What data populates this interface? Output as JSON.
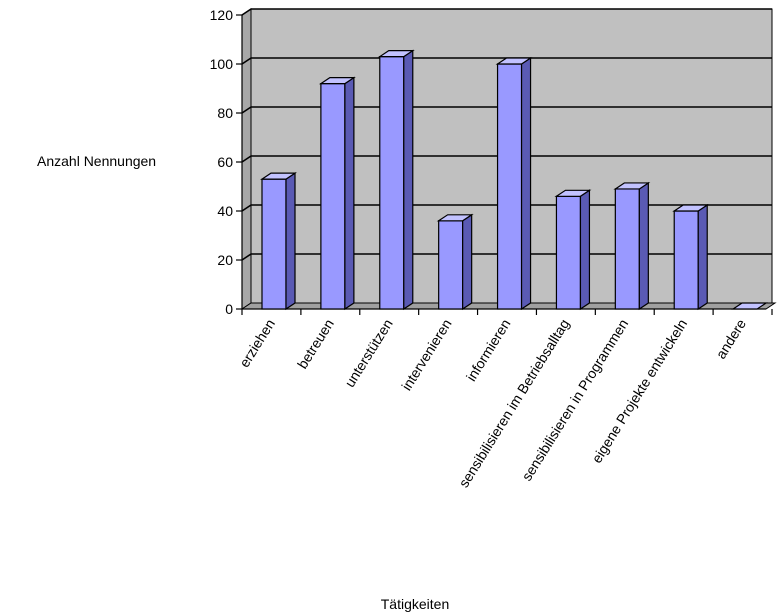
{
  "chart_data": {
    "type": "bar",
    "style": "3d-column",
    "categories": [
      "erziehen",
      "betreuen",
      "unterstützen",
      "intervenieren",
      "informieren",
      "sensibilisieren im Betriebsalltag",
      "sensibilisieren in Programmen",
      "eigene Projekte entwickeln",
      "andere"
    ],
    "values": [
      53,
      92,
      103,
      36,
      100,
      46,
      49,
      40,
      0
    ],
    "xlabel": "Tätigkeiten",
    "ylabel": "Anzahl Nennungen",
    "ylim": [
      0,
      120
    ],
    "yticks": [
      0,
      20,
      40,
      60,
      80,
      100,
      120
    ],
    "grid": true,
    "legend": "none",
    "colors": {
      "bar_front": "#9999ff",
      "bar_side": "#5a5ab4",
      "bar_top": "#c2c2ff",
      "plot_back": "#c0c0c0",
      "plot_side": "#a8a8a8",
      "plot_floor": "#a0a0a0",
      "gridline": "#000000"
    }
  }
}
